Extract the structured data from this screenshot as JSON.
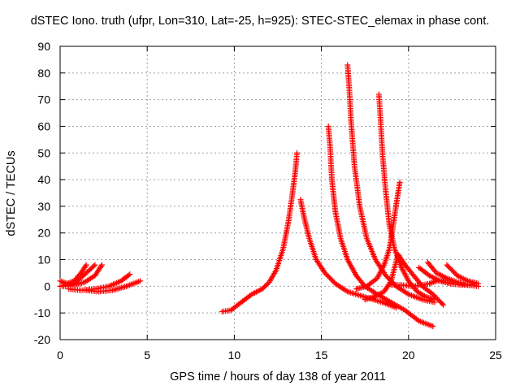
{
  "chart_data": {
    "type": "scatter",
    "title": "dSTEC Iono. truth (ufpr, Lon=310, Lat=-25, h=925): STEC-STEC_elemax in phase cont.",
    "xlabel": "GPS time / hours of day 138 of year 2011",
    "ylabel": "dSTEC  / TECUs",
    "xlim": [
      0,
      25
    ],
    "ylim": [
      -20,
      90
    ],
    "xticks": [
      "0",
      "5",
      "10",
      "15",
      "20",
      "25"
    ],
    "yticks": [
      "-20",
      "-10",
      "0",
      "10",
      "20",
      "30",
      "40",
      "50",
      "60",
      "70",
      "80",
      "90"
    ],
    "grid": true,
    "marker": "plus",
    "color": "#ff0000",
    "series": [
      {
        "x": [
          0.0,
          0.4,
          0.8,
          1.2,
          1.5
        ],
        "y": [
          2,
          1,
          2,
          5,
          8
        ]
      },
      {
        "x": [
          0.0,
          0.5,
          1.0,
          1.5,
          2.0
        ],
        "y": [
          0,
          0.5,
          2,
          5,
          8
        ]
      },
      {
        "x": [
          0.2,
          0.8,
          1.4,
          2.0,
          2.4
        ],
        "y": [
          0,
          0.5,
          1.5,
          4,
          8
        ]
      },
      {
        "x": [
          0.5,
          1.2,
          2.0,
          2.8,
          3.5,
          4.0
        ],
        "y": [
          -1,
          -1.5,
          -1,
          0,
          2,
          4.5
        ]
      },
      {
        "x": [
          1.5,
          2.2,
          3.0,
          3.8,
          4.6
        ],
        "y": [
          -1.5,
          -2,
          -1.5,
          0,
          2
        ]
      },
      {
        "x": [
          9.3,
          9.8,
          10.4,
          11.0,
          11.6,
          12.0,
          12.4,
          12.8,
          13.1,
          13.3,
          13.5,
          13.6
        ],
        "y": [
          -9.5,
          -9,
          -6,
          -3,
          -1,
          1.5,
          6,
          14,
          24,
          33,
          43,
          50
        ]
      },
      {
        "x": [
          13.8,
          14.0,
          14.3,
          14.7,
          15.2,
          15.8,
          16.5,
          17.5,
          18.5,
          19.3
        ],
        "y": [
          32.5,
          26,
          18,
          10,
          5,
          1,
          -2,
          -4,
          -6,
          -8
        ]
      },
      {
        "x": [
          15.4,
          15.5,
          15.6,
          15.8,
          16.1,
          16.5,
          17.0,
          17.5,
          18.2,
          19.0,
          19.8,
          20.6,
          21.4
        ],
        "y": [
          60,
          52,
          40,
          28,
          18,
          10,
          4,
          0,
          -3,
          -6,
          -9,
          -13,
          -15
        ]
      },
      {
        "x": [
          16.5,
          16.6,
          16.7,
          16.9,
          17.2,
          17.6,
          18.1,
          18.7,
          19.3,
          20.0,
          20.8,
          21.5
        ],
        "y": [
          83,
          74,
          62,
          45,
          30,
          18,
          10,
          4,
          0,
          -3,
          -5,
          -6
        ]
      },
      {
        "x": [
          18.3,
          18.4,
          18.5,
          18.7,
          18.9,
          19.2,
          19.6,
          20.0,
          20.5,
          21.0,
          21.5
        ],
        "y": [
          72,
          62,
          50,
          35,
          23,
          14,
          7,
          2,
          -2,
          -4,
          -5
        ]
      },
      {
        "x": [
          17.0,
          17.6,
          18.2,
          18.6,
          18.9,
          19.1,
          19.3,
          19.5
        ],
        "y": [
          -1,
          0,
          3,
          8,
          14,
          22,
          31,
          39
        ]
      },
      {
        "x": [
          17.5,
          18.0,
          18.6,
          19.0,
          19.4,
          19.8,
          20.3,
          20.8,
          21.4,
          22.0
        ],
        "y": [
          -5,
          -4,
          -2,
          2,
          12,
          8,
          4,
          0,
          -3,
          -7
        ]
      },
      {
        "x": [
          19.0,
          19.6,
          20.2,
          20.8,
          21.2,
          21.6,
          22.0
        ],
        "y": [
          0.5,
          0.5,
          0,
          0.5,
          1,
          2,
          2
        ]
      },
      {
        "x": [
          20.6,
          21.2,
          21.8,
          22.4,
          23.0,
          23.6
        ],
        "y": [
          7,
          4,
          2,
          1,
          0.5,
          0.5
        ]
      },
      {
        "x": [
          21.1,
          21.6,
          22.2,
          22.8,
          23.4,
          24.0
        ],
        "y": [
          9,
          5,
          3,
          1.5,
          0.5,
          0
        ]
      },
      {
        "x": [
          22.2,
          22.8,
          23.4,
          24.0
        ],
        "y": [
          8,
          4,
          2,
          1
        ]
      }
    ]
  }
}
